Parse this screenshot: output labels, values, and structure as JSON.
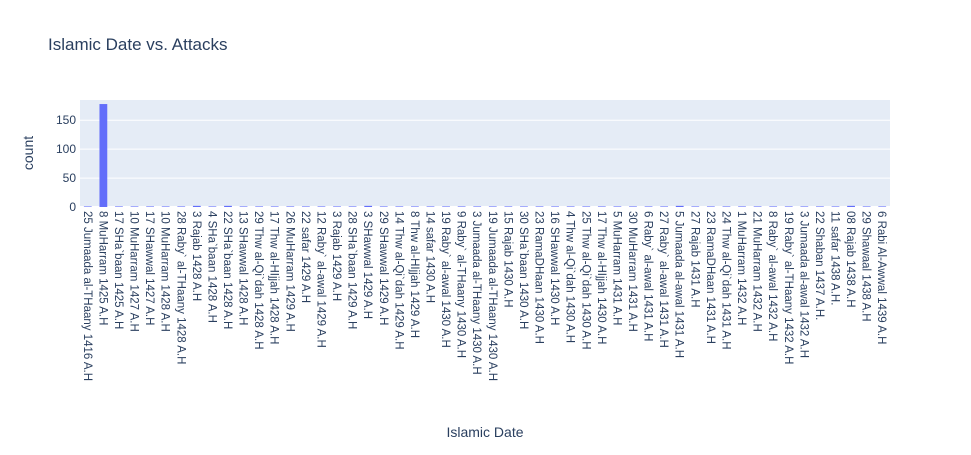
{
  "chart_data": {
    "type": "bar",
    "title": "Islamic Date vs. Attacks",
    "xlabel": "Islamic Date",
    "ylabel": "count",
    "ylim": [
      0,
      185
    ],
    "yticks": [
      0,
      50,
      100,
      150
    ],
    "grid": true,
    "bar_color": "#636efa",
    "plot_bg": "#e5ecf6",
    "ticklabels": [
      "25 Jumaada al-THaany 1416 A.H",
      "8 MuHarram 1425 A.H",
      "17 SHa`baan 1425 A.H",
      "10 MuHarram 1427 A.H",
      "17 SHawwal 1427 A.H",
      "10 MuHarram 1428 A.H",
      "28 Raby` al-THaany 1428 A.H",
      "3 Rajab 1428 A.H",
      "4 SHa`baan 1428 A.H",
      "22 SHa`baan 1428 A.H",
      "13 SHawwal 1428 A.H",
      "29 Thw al-Qi`dah 1428 A.H",
      "17 Thw al-HIjjah 1428 A.H",
      "26 MuHarram 1429 A.H",
      "22 safar 1429 A.H",
      "12 Raby` al-awal 1429 A.H",
      "3 Rajab 1429 A.H",
      "28 SHa`baan 1429 A.H",
      "3 SHawwal 1429 A.H",
      "29 SHawwal 1429 A.H",
      "14 Thw al-Qi`dah 1429 A.H",
      "8 Thw al-HIjjah 1429 A.H",
      "14 safar 1430 A.H",
      "19 Raby` al-awal 1430 A.H",
      "9 Raby` al-THaany 1430 A.H",
      "3 Jumaada al-THaany 1430 A.H",
      "19 Jumaada al-THaany 1430 A.H",
      "15 Rajab 1430 A.H",
      "30 SHa`baan 1430 A.H",
      "23 RamaDHaan 1430 A.H",
      "16 SHawwal 1430 A.H",
      "4 Thw al-Qi`dah 1430 A.H",
      "25 Thw al-Qi`dah 1430 A.H",
      "17 Thw al-HIjjah 1430 A.H",
      "5 MuHarram 1431 A.H",
      "30 MuHarram 1431 A.H",
      "6 Raby` al-awal 1431 A.H",
      "27 Raby` al-awal 1431 A.H",
      "5 Jumaada al-awal 1431 A.H",
      "27 Rajab 1431 A.H",
      "23 RamaDHaan 1431 A.H",
      "24 Thw al-Qi`dah 1431 A.H",
      "1 MuHarram 1432 A.H",
      "21 MuHarram 1432 A.H",
      "8 Raby` al-awal 1432 A.H",
      "19 Raby` al-THaany 1432 A.H",
      "3 Jumaada al-awal 1432 A.H",
      "22 Shaban 1437 A.H.",
      "11 safar 1438 A.H.",
      "08 Rajab 1438 A.H",
      "29 Shawaal 1438 A.H",
      "6 Rabi Al-Awwal 1439 A.H"
    ],
    "bars": [
      {
        "category": "25 Jumaada al-THaany 1416 A.H",
        "value": 1
      },
      {
        "category": "8 MuHarram 1425 A.H",
        "value": 178
      },
      {
        "category": "17 SHa`baan 1425 A.H",
        "value": 1
      },
      {
        "category": "10 MuHarram 1427 A.H",
        "value": 1
      },
      {
        "category": "17 SHawwal 1427 A.H",
        "value": 1
      },
      {
        "category": "10 MuHarram 1428 A.H",
        "value": 1
      },
      {
        "category": "28 Raby` al-THaany 1428 A.H",
        "value": 1
      },
      {
        "category": "3 Rajab 1428 A.H",
        "value": 2
      },
      {
        "category": "4 SHa`baan 1428 A.H",
        "value": 1
      },
      {
        "category": "22 SHa`baan 1428 A.H",
        "value": 2
      },
      {
        "category": "13 SHawwal 1428 A.H",
        "value": 1
      },
      {
        "category": "29 Thw al-Qi`dah 1428 A.H",
        "value": 1
      },
      {
        "category": "17 Thw al-HIjjah 1428 A.H",
        "value": 1
      },
      {
        "category": "26 MuHarram 1429 A.H",
        "value": 1
      },
      {
        "category": "22 safar 1429 A.H",
        "value": 1
      },
      {
        "category": "12 Raby` al-awal 1429 A.H",
        "value": 1
      },
      {
        "category": "3 Rajab 1429 A.H",
        "value": 1
      },
      {
        "category": "28 SHa`baan 1429 A.H",
        "value": 1
      },
      {
        "category": "3 SHawwal 1429 A.H",
        "value": 2
      },
      {
        "category": "29 SHawwal 1429 A.H",
        "value": 1
      },
      {
        "category": "14 Thw al-Qi`dah 1429 A.H",
        "value": 1
      },
      {
        "category": "8 Thw al-HIjjah 1429 A.H",
        "value": 1
      },
      {
        "category": "14 safar 1430 A.H",
        "value": 1
      },
      {
        "category": "19 Raby` al-awal 1430 A.H",
        "value": 1
      },
      {
        "category": "9 Raby` al-THaany 1430 A.H",
        "value": 1
      },
      {
        "category": "3 Jumaada al-THaany 1430 A.H",
        "value": 1
      },
      {
        "category": "19 Jumaada al-THaany 1430 A.H",
        "value": 1
      },
      {
        "category": "15 Rajab 1430 A.H",
        "value": 1
      },
      {
        "category": "30 SHa`baan 1430 A.H",
        "value": 1
      },
      {
        "category": "23 RamaDHaan 1430 A.H",
        "value": 1
      },
      {
        "category": "16 SHawwal 1430 A.H",
        "value": 1
      },
      {
        "category": "4 Thw al-Qi`dah 1430 A.H",
        "value": 1
      },
      {
        "category": "25 Thw al-Qi`dah 1430 A.H",
        "value": 1
      },
      {
        "category": "17 Thw al-HIjjah 1430 A.H",
        "value": 1
      },
      {
        "category": "5 MuHarram 1431 A.H",
        "value": 1
      },
      {
        "category": "30 MuHarram 1431 A.H",
        "value": 1
      },
      {
        "category": "6 Raby` al-awal 1431 A.H",
        "value": 1
      },
      {
        "category": "27 Raby` al-awal 1431 A.H",
        "value": 1
      },
      {
        "category": "5 Jumaada al-awal 1431 A.H",
        "value": 2
      },
      {
        "category": "27 Rajab 1431 A.H",
        "value": 1
      },
      {
        "category": "23 RamaDHaan 1431 A.H",
        "value": 1
      },
      {
        "category": "24 Thw al-Qi`dah 1431 A.H",
        "value": 1
      },
      {
        "category": "1 MuHarram 1432 A.H",
        "value": 1
      },
      {
        "category": "21 MuHarram 1432 A.H",
        "value": 1
      },
      {
        "category": "8 Raby` al-awal 1432 A.H",
        "value": 1
      },
      {
        "category": "19 Raby` al-THaany 1432 A.H",
        "value": 1
      },
      {
        "category": "3 Jumaada al-awal 1432 A.H",
        "value": 1
      },
      {
        "category": "22 Shaban 1437 A.H.",
        "value": 1
      },
      {
        "category": "11 safar 1438 A.H.",
        "value": 1
      },
      {
        "category": "08 Rajab 1438 A.H",
        "value": 2
      },
      {
        "category": "29 Shawaal 1438 A.H",
        "value": 1
      },
      {
        "category": "6 Rabi Al-Awwal 1439 A.H",
        "value": 1
      }
    ]
  }
}
